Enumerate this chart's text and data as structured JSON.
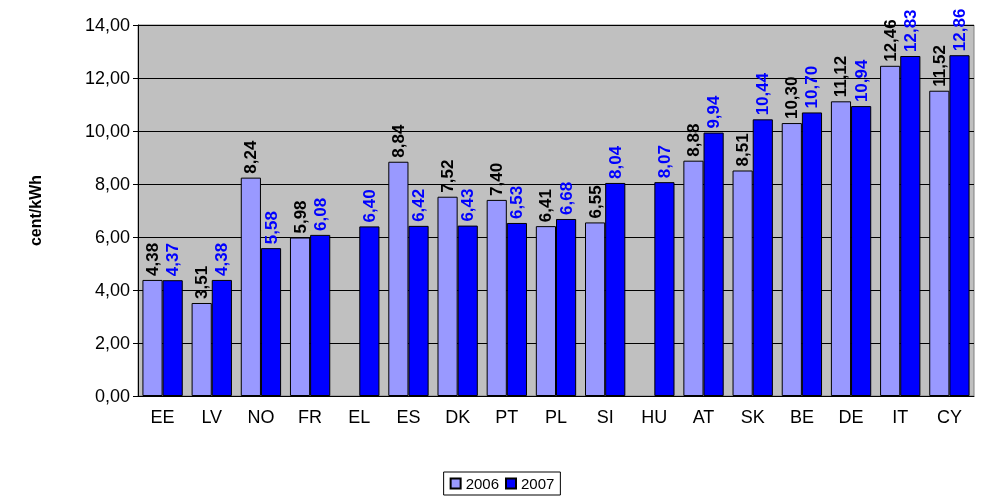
{
  "chart_data": {
    "type": "bar",
    "ylabel": "cent/kWh",
    "categories": [
      "EE",
      "LV",
      "NO",
      "FR",
      "EL",
      "ES",
      "DK",
      "PT",
      "PL",
      "SI",
      "HU",
      "AT",
      "SK",
      "BE",
      "DE",
      "IT",
      "CY"
    ],
    "series": [
      {
        "name": "2006",
        "color": "#9999ff",
        "values": [
          4.38,
          3.51,
          8.24,
          5.98,
          null,
          8.84,
          7.52,
          7.4,
          6.41,
          6.55,
          null,
          8.88,
          8.51,
          10.3,
          11.12,
          12.46,
          11.52
        ],
        "value_labels": [
          "4,38",
          "3,51",
          "8,24",
          "5,98",
          null,
          "8,84",
          "7,52",
          "7,40",
          "6,41",
          "6,55",
          null,
          "8,88",
          "8,51",
          "10,30",
          "11,12",
          "12,46",
          "11,52"
        ]
      },
      {
        "name": "2007",
        "color": "#0000ff",
        "values": [
          4.37,
          4.38,
          5.58,
          6.08,
          6.4,
          6.42,
          6.43,
          6.53,
          6.68,
          8.04,
          8.07,
          9.94,
          10.44,
          10.7,
          10.94,
          12.83,
          12.86
        ],
        "value_labels": [
          "4,37",
          "4,38",
          "5,58",
          "6,08",
          "6,40",
          "6,42",
          "6,43",
          "6,53",
          "6,68",
          "8,04",
          "8,07",
          "9,94",
          "10,44",
          "10,70",
          "10,94",
          "12,83",
          "12,86"
        ]
      }
    ],
    "ylim": [
      0,
      14
    ],
    "yticks": [
      {
        "value": 0,
        "label": "0,00"
      },
      {
        "value": 2,
        "label": "2,00"
      },
      {
        "value": 4,
        "label": "4,00"
      },
      {
        "value": 6,
        "label": "6,00"
      },
      {
        "value": 8,
        "label": "8,00"
      },
      {
        "value": 10,
        "label": "10,00"
      },
      {
        "value": 12,
        "label": "12,00"
      },
      {
        "value": 14,
        "label": "14,00"
      }
    ],
    "grid": "y",
    "legend": "bottom"
  }
}
